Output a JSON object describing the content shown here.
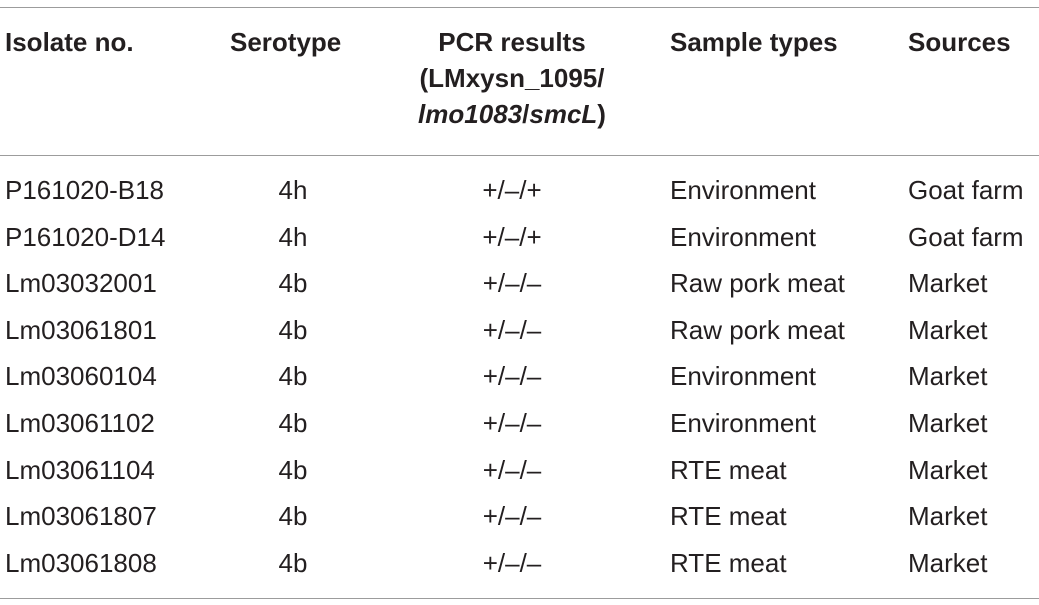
{
  "table": {
    "headers": {
      "isolate": "Isolate no.",
      "serotype": "Serotype",
      "pcr_line1": "PCR results",
      "pcr_line2": "(LMxysn_1095/",
      "pcr_line3_italic1": "lmo1083",
      "pcr_line3_sep": "/",
      "pcr_line3_italic2": "smcL",
      "pcr_line3_close": ")",
      "sample": "Sample types",
      "source": "Sources"
    },
    "rows": [
      {
        "isolate": "P161020-B18",
        "serotype": "4h",
        "pcr": "+/–/+",
        "sample": "Environment",
        "source": "Goat farm"
      },
      {
        "isolate": "P161020-D14",
        "serotype": "4h",
        "pcr": "+/–/+",
        "sample": "Environment",
        "source": "Goat farm"
      },
      {
        "isolate": "Lm03032001",
        "serotype": "4b",
        "pcr": "+/–/–",
        "sample": "Raw pork meat",
        "source": "Market"
      },
      {
        "isolate": "Lm03061801",
        "serotype": "4b",
        "pcr": "+/–/–",
        "sample": "Raw pork meat",
        "source": "Market"
      },
      {
        "isolate": "Lm03060104",
        "serotype": "4b",
        "pcr": "+/–/–",
        "sample": "Environment",
        "source": "Market"
      },
      {
        "isolate": "Lm03061102",
        "serotype": "4b",
        "pcr": "+/–/–",
        "sample": "Environment",
        "source": "Market"
      },
      {
        "isolate": "Lm03061104",
        "serotype": "4b",
        "pcr": "+/–/–",
        "sample": "RTE meat",
        "source": "Market"
      },
      {
        "isolate": "Lm03061807",
        "serotype": "4b",
        "pcr": "+/–/–",
        "sample": "RTE meat",
        "source": "Market"
      },
      {
        "isolate": "Lm03061808",
        "serotype": "4b",
        "pcr": "+/–/–",
        "sample": "RTE meat",
        "source": "Market"
      }
    ]
  }
}
